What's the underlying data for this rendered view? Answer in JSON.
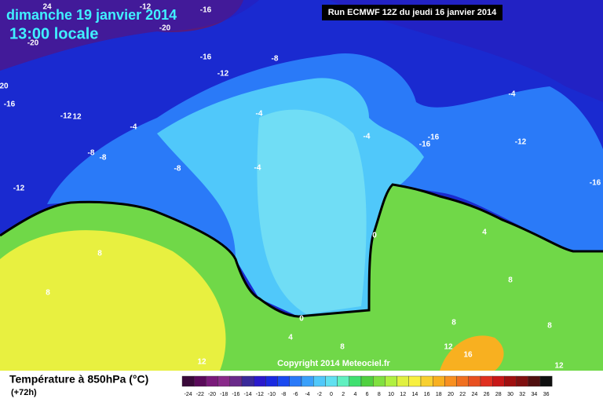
{
  "header": {
    "date": "dimanche 19 janvier 2014",
    "time": "13:00 locale",
    "run": "Run ECMWF 12Z du jeudi 16 janvier 2014"
  },
  "map": {
    "copyright": "Copyright 2014 Meteociel.fr",
    "contour_labels": [
      -12,
      24,
      -16,
      -20,
      -20,
      -16,
      -8,
      -12,
      20,
      -16,
      -12,
      12,
      -4,
      -4,
      -8,
      -8,
      -8,
      -4,
      -4,
      -16,
      -16,
      -12,
      -4,
      -12,
      -16,
      0,
      4,
      8,
      8,
      0,
      4,
      8,
      8,
      12,
      16,
      12,
      12,
      8,
      8
    ]
  },
  "legend": {
    "title": "Température à 850hPa (°C)",
    "subtitle": "(+72h)",
    "ticks": [
      -24,
      -22,
      -20,
      -18,
      -16,
      -14,
      -12,
      -10,
      -8,
      -6,
      -4,
      -2,
      0,
      2,
      4,
      6,
      8,
      10,
      12,
      14,
      16,
      18,
      20,
      22,
      24,
      26,
      28,
      30,
      32,
      34,
      36
    ],
    "colors": [
      "#3a0a3a",
      "#5a0a5a",
      "#7a1a7a",
      "#8a2a8a",
      "#6a2a8a",
      "#3a2a9a",
      "#2a1acc",
      "#1a2ae0",
      "#1a4af0",
      "#2a7af8",
      "#3aa0fa",
      "#50c8fa",
      "#60e0f0",
      "#60f0c0",
      "#40e070",
      "#50d040",
      "#80e040",
      "#b0f040",
      "#e0f040",
      "#f8f040",
      "#f8d030",
      "#f8b020",
      "#f89020",
      "#f07020",
      "#e85020",
      "#e03020",
      "#c81818",
      "#a01010",
      "#801010",
      "#501010",
      "#101010"
    ]
  }
}
